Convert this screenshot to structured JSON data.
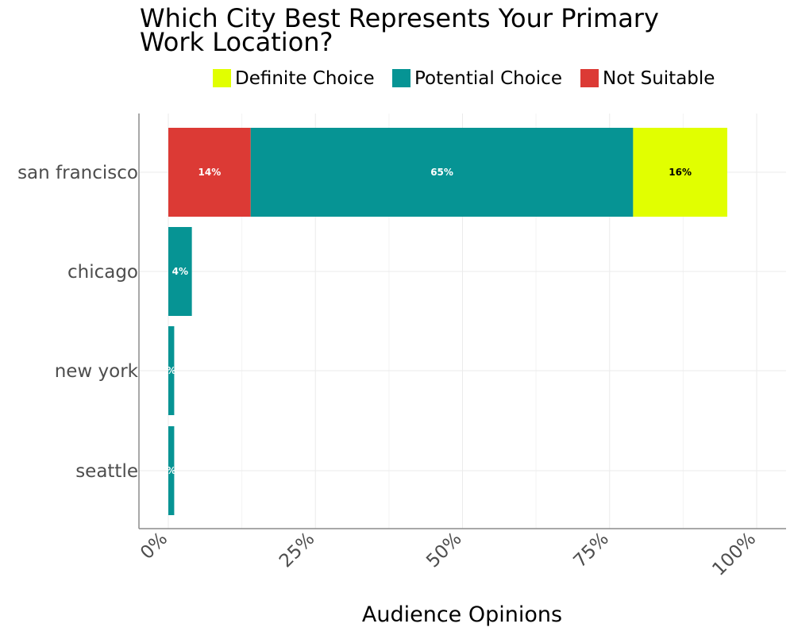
{
  "chart_data": {
    "type": "bar",
    "orientation": "horizontal",
    "stacked": true,
    "title_lines": [
      "Which City Best Represents Your Primary",
      "Work Location?"
    ],
    "xlabel": "Audience Opinions",
    "ylabel": "",
    "xlim": [
      0,
      100
    ],
    "xticks": [
      0,
      25,
      50,
      75,
      100
    ],
    "xtick_labels": [
      "0%",
      "25%",
      "50%",
      "75%",
      "100%"
    ],
    "grid": true,
    "legend_position": "top",
    "categories": [
      "san francisco",
      "chicago",
      "new york",
      "seattle"
    ],
    "legend": [
      {
        "name": "Definite Choice",
        "color": "#e1ff00"
      },
      {
        "name": "Potential Choice",
        "color": "#069494"
      },
      {
        "name": "Not Suitable",
        "color": "#dc3a35"
      }
    ],
    "series": [
      {
        "name": "Not Suitable",
        "color": "#dc3a35",
        "label_color": "#ffffff",
        "values": [
          14,
          0,
          0,
          0
        ],
        "labels": [
          "14%",
          "",
          "",
          ""
        ]
      },
      {
        "name": "Potential Choice",
        "color": "#069494",
        "label_color": "#ffffff",
        "values": [
          65,
          4,
          1,
          1
        ],
        "labels": [
          "65%",
          "4%",
          "%",
          "%"
        ]
      },
      {
        "name": "Definite Choice",
        "color": "#e1ff00",
        "label_color": "#000000",
        "values": [
          16,
          0,
          0,
          0
        ],
        "labels": [
          "16%",
          "",
          "",
          ""
        ]
      }
    ]
  }
}
